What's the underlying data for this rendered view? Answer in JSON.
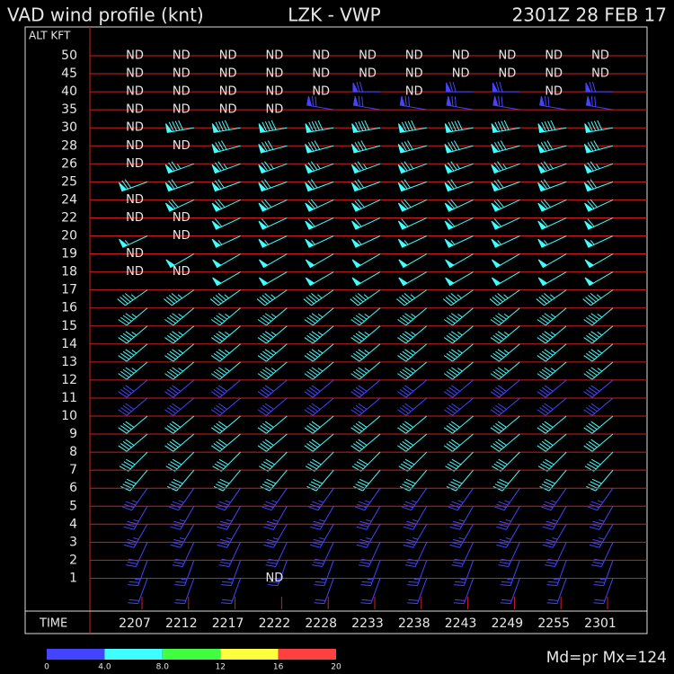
{
  "chart_data": {
    "type": "wind_profile",
    "title": "VAD wind profile (knt)",
    "station": "LZK - VWP",
    "time_stamp": "2301Z 28 FEB 17",
    "y_label": "ALT KFT",
    "x_label": "TIME",
    "no_data": "ND",
    "times": [
      "2207",
      "2212",
      "2217",
      "2222",
      "2228",
      "2233",
      "2238",
      "2243",
      "2249",
      "2255",
      "2301"
    ],
    "rows": [
      {
        "alt": "50",
        "nd": [
          0,
          1,
          2,
          3,
          4,
          5,
          6,
          7,
          8,
          9,
          10
        ]
      },
      {
        "alt": "45",
        "nd": [
          0,
          1,
          2,
          3,
          4,
          5,
          6,
          7,
          8,
          9,
          10
        ]
      },
      {
        "alt": "40",
        "speed": 70,
        "dir": 270,
        "color": "#4444ff",
        "nd": [
          0,
          1,
          2,
          3,
          4,
          6,
          9
        ]
      },
      {
        "alt": "35",
        "speed": 70,
        "dir": 280,
        "color": "#4444ff",
        "nd": [
          0,
          1,
          2,
          3
        ]
      },
      {
        "alt": "30",
        "speed": 90,
        "dir": 260,
        "color": "#40ffff",
        "nd": [
          0
        ]
      },
      {
        "alt": "28",
        "speed": 80,
        "dir": 255,
        "color": "#40ffff",
        "nd": [
          0,
          1
        ]
      },
      {
        "alt": "26",
        "speed": 75,
        "dir": 250,
        "color": "#40ffff",
        "nd": [
          0
        ]
      },
      {
        "alt": "25",
        "speed": 70,
        "dir": 250,
        "color": "#40ffff",
        "nd": []
      },
      {
        "alt": "24",
        "speed": 70,
        "dir": 245,
        "color": "#40ffff",
        "nd": [
          0
        ]
      },
      {
        "alt": "22",
        "speed": 60,
        "dir": 245,
        "color": "#40ffff",
        "nd": [
          0,
          1
        ]
      },
      {
        "alt": "20",
        "speed": 55,
        "dir": 245,
        "color": "#40ffff",
        "nd": [
          1
        ]
      },
      {
        "alt": "19",
        "speed": 50,
        "dir": 240,
        "color": "#40ffff",
        "nd": [
          0
        ]
      },
      {
        "alt": "18",
        "speed": 50,
        "dir": 240,
        "color": "#40ffff",
        "nd": [
          0,
          1
        ]
      },
      {
        "alt": "17",
        "speed": 45,
        "dir": 235,
        "color": "#40ffff",
        "nd": []
      },
      {
        "alt": "16",
        "speed": 45,
        "dir": 230,
        "color": "#40ffff",
        "nd": []
      },
      {
        "alt": "15",
        "speed": 45,
        "dir": 230,
        "color": "#40ffff",
        "nd": []
      },
      {
        "alt": "14",
        "speed": 45,
        "dir": 230,
        "color": "#40ffff",
        "nd": []
      },
      {
        "alt": "13",
        "speed": 45,
        "dir": 230,
        "color": "#40ffff",
        "nd": []
      },
      {
        "alt": "12",
        "speed": 40,
        "dir": 230,
        "color": "#4444ff",
        "nd": []
      },
      {
        "alt": "11",
        "speed": 40,
        "dir": 230,
        "color": "#4444ff",
        "nd": []
      },
      {
        "alt": "10",
        "speed": 40,
        "dir": 230,
        "color": "#40ffff",
        "nd": []
      },
      {
        "alt": "9",
        "speed": 40,
        "dir": 230,
        "color": "#40ffff",
        "nd": []
      },
      {
        "alt": "8",
        "speed": 40,
        "dir": 225,
        "color": "#40ffff",
        "nd": []
      },
      {
        "alt": "7",
        "speed": 40,
        "dir": 220,
        "color": "#40ffff",
        "nd": []
      },
      {
        "alt": "6",
        "speed": 35,
        "dir": 215,
        "color": "#4444ff",
        "nd": []
      },
      {
        "alt": "5",
        "speed": 35,
        "dir": 210,
        "color": "#4444ff",
        "nd": []
      },
      {
        "alt": "4",
        "speed": 35,
        "dir": 210,
        "color": "#4444ff",
        "nd": []
      },
      {
        "alt": "3",
        "speed": 30,
        "dir": 205,
        "color": "#4444ff",
        "nd": []
      },
      {
        "alt": "2",
        "speed": 25,
        "dir": 200,
        "color": "#4444ff",
        "nd": []
      },
      {
        "alt": "1",
        "speed": 20,
        "dir": 200,
        "color": "#4444ff",
        "nd": [
          3
        ]
      }
    ],
    "colorbar": {
      "colors": [
        "#4444ff",
        "#40ffff",
        "#40ff40",
        "#ffff40",
        "#ff4040"
      ],
      "ticks": [
        0,
        {
          "value": 4,
          "label": "4.0"
        },
        {
          "value": 8,
          "label": "8.0"
        },
        12,
        16,
        20
      ]
    },
    "footer": "Md=pr Mx=124"
  }
}
